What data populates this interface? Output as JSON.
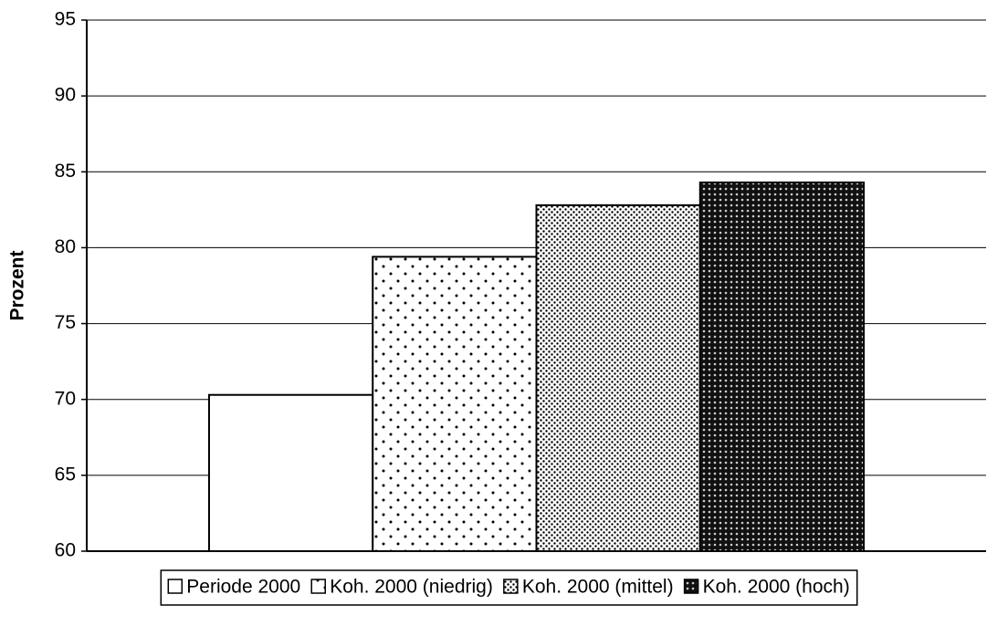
{
  "chart_data": {
    "type": "bar",
    "y_label": "Prozent",
    "categories": [
      null
    ],
    "series": [
      {
        "name": "Periode 2000",
        "color": "#ffffff",
        "pattern": "none",
        "values": [
          70.3
        ]
      },
      {
        "name": "Koh. 2000 (niedrig)",
        "color": "#ffffff",
        "pattern": "sparse-dots",
        "values": [
          79.4
        ]
      },
      {
        "name": "Koh. 2000 (mittel)",
        "color": "#ffffff",
        "pattern": "dense-dots",
        "values": [
          82.8
        ]
      },
      {
        "name": "Koh. 2000 (hoch)",
        "color": "#1a1a1a",
        "pattern": "crosshatch",
        "values": [
          84.3
        ]
      }
    ],
    "ylim": [
      60,
      95
    ],
    "yticks": [
      60,
      65,
      70,
      75,
      80,
      85,
      90,
      95
    ],
    "grid": true,
    "legend": "bottom"
  }
}
